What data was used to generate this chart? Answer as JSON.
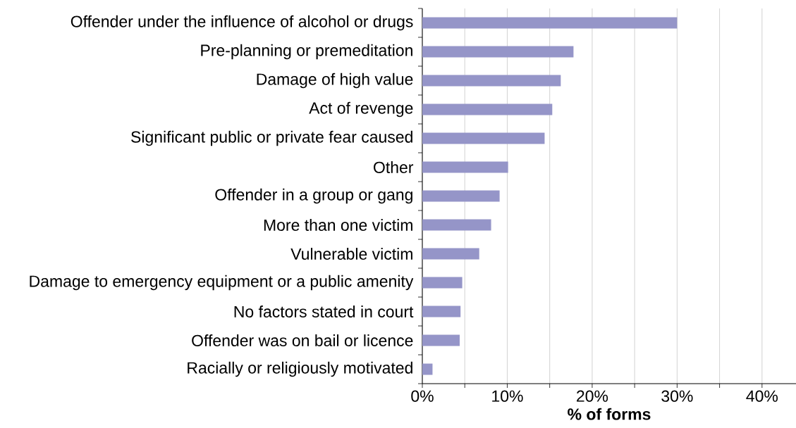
{
  "chart_data": {
    "type": "bar",
    "orientation": "horizontal",
    "xlabel": "% of forms",
    "categories": [
      "Offender under the influence of alcohol or drugs",
      "Pre-planning or premeditation",
      "Damage of high value",
      "Act of revenge",
      "Significant public or private fear caused",
      "Other",
      "Offender in a group or gang",
      "More than one victim",
      "Vulnerable victim",
      "Damage to emergency equipment or a public amenity",
      "No factors stated in court",
      "Offender was on bail or licence",
      "Racially or religiously motivated"
    ],
    "values": [
      30.0,
      17.8,
      16.3,
      15.3,
      14.4,
      10.1,
      9.1,
      8.1,
      6.7,
      4.7,
      4.5,
      4.4,
      1.2
    ],
    "color": "#9595c8",
    "xlim": [
      0,
      44
    ],
    "xticks": [
      {
        "value": 0,
        "label": "0%"
      },
      {
        "value": 5,
        "label": null
      },
      {
        "value": 10,
        "label": "10%"
      },
      {
        "value": 15,
        "label": null
      },
      {
        "value": 20,
        "label": "20%"
      },
      {
        "value": 25,
        "label": null
      },
      {
        "value": 30,
        "label": "30%"
      },
      {
        "value": 35,
        "label": null
      },
      {
        "value": 40,
        "label": "40%"
      }
    ],
    "grid": "x"
  }
}
